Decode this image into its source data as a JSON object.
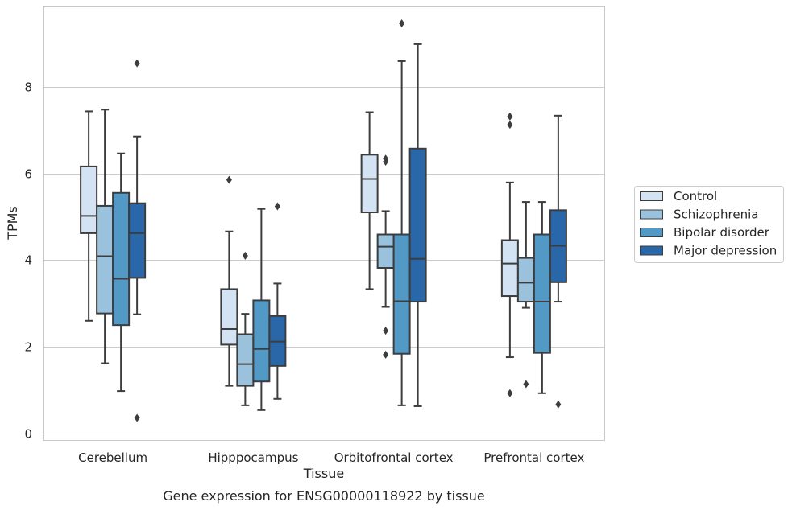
{
  "chart_data": {
    "type": "box",
    "xlabel": "Tissue",
    "ylabel": "TPMs",
    "caption": "Gene expression for ENSG00000118922 by tissue",
    "ylim": [
      -0.15,
      9.85
    ],
    "yticks": [
      0,
      2,
      4,
      6,
      8
    ],
    "grid": "horizontal",
    "legend_position": "right",
    "categories": [
      "Cerebellum",
      "Hipppocampus",
      "Orbitofrontal cortex",
      "Prefrontal cortex"
    ],
    "series": [
      {
        "name": "Control",
        "color": "#d3e3f3",
        "boxes": [
          {
            "whislo": 2.6,
            "q1": 4.62,
            "med": 5.02,
            "q3": 6.16,
            "whishi": 7.43,
            "fliers": []
          },
          {
            "whislo": 1.1,
            "q1": 2.05,
            "med": 2.41,
            "q3": 3.33,
            "whishi": 4.66,
            "fliers": [
              5.85
            ]
          },
          {
            "whislo": 3.33,
            "q1": 5.1,
            "med": 5.87,
            "q3": 6.43,
            "whishi": 7.41,
            "fliers": []
          },
          {
            "whislo": 1.76,
            "q1": 3.17,
            "med": 3.92,
            "q3": 4.46,
            "whishi": 5.79,
            "fliers": [
              0.93,
              7.12,
              7.31
            ]
          }
        ]
      },
      {
        "name": "Schizophrenia",
        "color": "#9ac2dd",
        "boxes": [
          {
            "whislo": 1.62,
            "q1": 2.77,
            "med": 4.09,
            "q3": 5.25,
            "whishi": 7.47,
            "fliers": []
          },
          {
            "whislo": 0.65,
            "q1": 1.1,
            "med": 1.6,
            "q3": 2.29,
            "whishi": 2.76,
            "fliers": [
              4.1
            ]
          },
          {
            "whislo": 2.92,
            "q1": 3.82,
            "med": 4.31,
            "q3": 4.59,
            "whishi": 5.13,
            "fliers": [
              1.82,
              2.37,
              6.27,
              6.34
            ]
          },
          {
            "whislo": 2.9,
            "q1": 3.04,
            "med": 3.48,
            "q3": 4.05,
            "whishi": 5.34,
            "fliers": [
              1.14
            ]
          }
        ]
      },
      {
        "name": "Bipolar disorder",
        "color": "#5399c6",
        "boxes": [
          {
            "whislo": 0.98,
            "q1": 2.5,
            "med": 3.57,
            "q3": 5.55,
            "whishi": 6.46,
            "fliers": []
          },
          {
            "whislo": 0.54,
            "q1": 1.2,
            "med": 1.95,
            "q3": 3.07,
            "whishi": 5.18,
            "fliers": []
          },
          {
            "whislo": 0.65,
            "q1": 1.84,
            "med": 3.05,
            "q3": 4.59,
            "whishi": 8.59,
            "fliers": [
              9.46
            ]
          },
          {
            "whislo": 0.93,
            "q1": 1.86,
            "med": 3.04,
            "q3": 4.59,
            "whishi": 5.34,
            "fliers": []
          }
        ]
      },
      {
        "name": "Major depression",
        "color": "#2967a8",
        "boxes": [
          {
            "whislo": 2.75,
            "q1": 3.59,
            "med": 4.62,
            "q3": 5.31,
            "whishi": 6.85,
            "fliers": [
              0.36,
              8.54
            ]
          },
          {
            "whislo": 0.8,
            "q1": 1.56,
            "med": 2.12,
            "q3": 2.71,
            "whishi": 3.46,
            "fliers": [
              5.24
            ]
          },
          {
            "whislo": 0.63,
            "q1": 3.04,
            "med": 4.03,
            "q3": 6.57,
            "whishi": 8.98,
            "fliers": []
          },
          {
            "whislo": 3.04,
            "q1": 3.49,
            "med": 4.33,
            "q3": 5.15,
            "whishi": 7.33,
            "fliers": [
              0.67
            ]
          }
        ]
      }
    ]
  },
  "colors": {
    "box_edge": "#3d3d3d",
    "grid": "#cccccc",
    "frame": "#c9c9c9"
  }
}
